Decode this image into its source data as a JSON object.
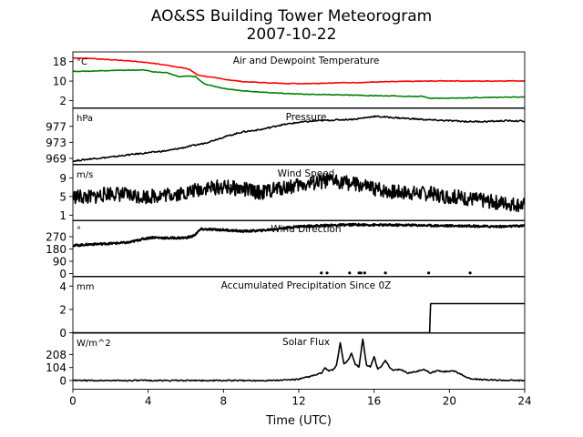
{
  "figure": {
    "title": "AO&SS Building Tower Meteorogram",
    "subtitle": "2007-10-22",
    "xlabel": "Time (UTC)"
  },
  "chart_data": {
    "type": "line",
    "title": "AO&SS Building Tower Meteorogram",
    "subtitle": "2007-10-22",
    "xlabel": "Time (UTC)",
    "xlim": [
      0,
      24
    ],
    "xticks": [
      0,
      4,
      8,
      12,
      16,
      20,
      24
    ],
    "panels": [
      {
        "id": "temperature",
        "title": "Air and Dewpoint Temperature",
        "unit": "°C",
        "ylim": [
          -1,
          22
        ],
        "yticks": [
          2,
          10,
          18
        ],
        "series": [
          {
            "color": "#ff0000",
            "style": "line",
            "x": [
              0,
              1,
              2,
              3,
              4,
              5,
              5.8,
              6.2,
              6.6,
              7,
              8,
              9,
              10,
              11,
              12,
              13,
              14,
              15,
              16,
              17,
              18,
              19,
              20,
              21,
              22,
              23,
              24
            ],
            "y": [
              19.5,
              19.3,
              18.8,
              18.3,
              17.6,
              16.5,
              15.5,
              14.8,
              12.6,
              12.0,
              10.8,
              9.8,
              9.4,
              9.1,
              9.0,
              9.1,
              9.3,
              9.4,
              9.6,
              9.8,
              9.9,
              10.0,
              10.1,
              10.0,
              10.0,
              10.1,
              10.1
            ]
          },
          {
            "color": "#008000",
            "style": "line",
            "x": [
              0,
              1,
              2,
              3,
              3.8,
              4.2,
              5,
              5.6,
              6,
              6.5,
              7,
              8,
              9,
              10,
              11,
              12,
              13,
              14,
              15,
              16,
              17,
              18,
              18.5,
              19,
              20,
              21,
              22,
              23,
              24
            ],
            "y": [
              14.0,
              14.1,
              14.3,
              14.5,
              14.6,
              13.8,
              13.5,
              11.9,
              12.0,
              11.9,
              8.8,
              7.0,
              6.0,
              5.5,
              5.0,
              4.7,
              4.5,
              4.4,
              4.2,
              4.0,
              3.9,
              3.7,
              3.8,
              3.0,
              3.0,
              3.1,
              3.3,
              3.4,
              3.5
            ]
          }
        ]
      },
      {
        "id": "pressure",
        "title": "Pressure",
        "unit": "hPa",
        "ylim": [
          967.5,
          981.5
        ],
        "yticks": [
          969,
          973,
          977
        ],
        "series": [
          {
            "color": "#000000",
            "style": "line",
            "x": [
              0,
              1,
              2,
              3,
              4,
              5,
              6,
              7,
              8,
              9,
              10,
              11,
              12,
              13,
              14,
              15,
              16,
              17,
              18,
              19,
              20,
              21,
              22,
              23,
              24
            ],
            "y": [
              968.3,
              968.9,
              969.3,
              969.9,
              970.4,
              970.9,
              971.8,
              972.8,
              974.3,
              975.6,
              976.2,
              977.3,
              978.0,
              978.4,
              978.6,
              978.8,
              979.5,
              979.2,
              978.9,
              978.6,
              978.4,
              978.2,
              978.2,
              978.4,
              978.3
            ]
          }
        ]
      },
      {
        "id": "wind_speed",
        "title": "Wind Speed",
        "unit": "m/s",
        "ylim": [
          -0.2,
          11.8
        ],
        "yticks": [
          1,
          5,
          9
        ],
        "series": [
          {
            "color": "#000000",
            "style": "line",
            "x": [
              0,
              1,
              2,
              3,
              4,
              5,
              6,
              7,
              8,
              9,
              10,
              11,
              12,
              13,
              14,
              15,
              16,
              17,
              18,
              19,
              20,
              21,
              22,
              23,
              24
            ],
            "y": [
              5.0,
              4.8,
              5.8,
              5.2,
              5.0,
              5.4,
              5.8,
              6.8,
              7.0,
              6.6,
              5.8,
              6.8,
              7.4,
              8.0,
              8.4,
              7.6,
              6.6,
              6.0,
              5.8,
              5.6,
              5.0,
              4.6,
              4.0,
              3.6,
              3.2
            ]
          }
        ]
      },
      {
        "id": "wind_direction",
        "title": "Wind Direction",
        "unit": "°",
        "ylim": [
          -20,
          390
        ],
        "yticks": [
          0,
          90,
          180,
          270
        ],
        "series": [
          {
            "color": "#000000",
            "style": "line",
            "x": [
              0,
              1,
              2,
              3,
              3.6,
              4.2,
              5,
              6,
              6.4,
              6.8,
              8,
              9,
              10,
              11,
              12,
              13,
              14,
              15,
              16,
              17,
              18,
              19,
              20,
              21,
              22,
              23,
              24
            ],
            "y": [
              205,
              215,
              220,
              228,
              250,
              265,
              260,
              262,
              275,
              325,
              320,
              310,
              315,
              330,
              345,
              350,
              355,
              358,
              356,
              355,
              355,
              352,
              350,
              350,
              345,
              345,
              350
            ]
          },
          {
            "color": "#000000",
            "style": "points",
            "x": [
              13.2,
              13.5,
              14.7,
              15.2,
              15.3,
              15.5,
              16.6,
              18.9,
              21.1
            ],
            "y": [
              5,
              5,
              5,
              5,
              5,
              5,
              5,
              5,
              5
            ]
          }
        ]
      },
      {
        "id": "precipitation",
        "title": "Accumulated Precipitation Since 0Z",
        "unit": "mm",
        "ylim": [
          0,
          4.8
        ],
        "yticks": [
          0,
          2,
          4
        ],
        "series": [
          {
            "color": "#000000",
            "style": "line",
            "x": [
              0,
              18.95,
              19.0,
              24
            ],
            "y": [
              0,
              0,
              2.5,
              2.5
            ]
          }
        ]
      },
      {
        "id": "solar",
        "title": "Solar Flux",
        "unit": "W/m^2",
        "ylim": [
          -70,
          380
        ],
        "yticks": [
          0,
          104,
          208
        ],
        "series": [
          {
            "color": "#000000",
            "style": "line",
            "x": [
              0,
              6,
              10,
              11,
              12,
              12.8,
              13.2,
              13.4,
              13.6,
              13.8,
              14.0,
              14.2,
              14.4,
              14.6,
              14.8,
              15.0,
              15.2,
              15.4,
              15.6,
              15.8,
              16.0,
              16.2,
              16.4,
              16.6,
              16.8,
              17.0,
              17.4,
              17.8,
              18.2,
              18.6,
              19.0,
              19.4,
              19.8,
              20.2,
              20.6,
              21.0,
              21.4,
              22,
              23,
              24
            ],
            "y": [
              0,
              0,
              0,
              2,
              10,
              40,
              60,
              100,
              75,
              85,
              120,
              300,
              130,
              160,
              220,
              130,
              110,
              330,
              120,
              110,
              190,
              90,
              120,
              160,
              110,
              80,
              90,
              60,
              70,
              90,
              60,
              80,
              70,
              80,
              50,
              20,
              10,
              5,
              2,
              0
            ]
          }
        ]
      }
    ]
  }
}
